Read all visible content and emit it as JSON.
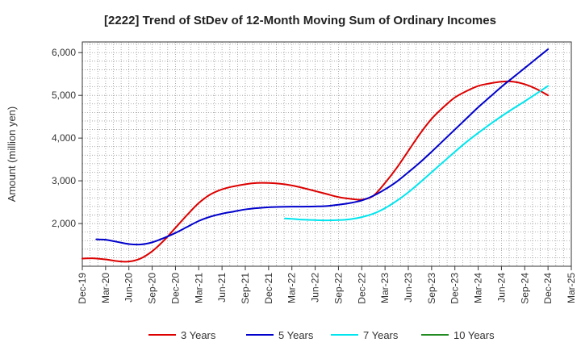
{
  "chart_data": {
    "type": "line",
    "title": "[2222]  Trend of StDev of 12-Month Moving Sum of Ordinary Incomes",
    "xlabel": "",
    "ylabel": "Amount (million yen)",
    "x_ticks": [
      "Dec-19",
      "Mar-20",
      "Jun-20",
      "Sep-20",
      "Dec-20",
      "Mar-21",
      "Jun-21",
      "Sep-21",
      "Dec-21",
      "Mar-22",
      "Jun-22",
      "Sep-22",
      "Dec-22",
      "Mar-23",
      "Jun-23",
      "Sep-23",
      "Dec-23",
      "Mar-24",
      "Jun-24",
      "Sep-24",
      "Dec-24",
      "Mar-25"
    ],
    "x_range": [
      0,
      21
    ],
    "y_ticks": [
      2000,
      3000,
      4000,
      5000,
      6000
    ],
    "y_tick_labels": [
      "2,000",
      "3,000",
      "4,000",
      "5,000",
      "6,000"
    ],
    "ylim": [
      1000,
      6250
    ],
    "grid": true,
    "legend_position": "bottom",
    "series": [
      {
        "name": "3 Years",
        "color": "#dd0000",
        "points": [
          [
            0,
            1180
          ],
          [
            0.5,
            1185
          ],
          [
            1,
            1160
          ],
          [
            1.5,
            1120
          ],
          [
            2,
            1110
          ],
          [
            2.5,
            1180
          ],
          [
            3,
            1350
          ],
          [
            3.5,
            1600
          ],
          [
            4,
            1900
          ],
          [
            4.5,
            2200
          ],
          [
            5,
            2480
          ],
          [
            5.5,
            2680
          ],
          [
            6,
            2800
          ],
          [
            6.5,
            2870
          ],
          [
            7,
            2920
          ],
          [
            7.5,
            2950
          ],
          [
            8,
            2950
          ],
          [
            8.5,
            2930
          ],
          [
            9,
            2890
          ],
          [
            9.5,
            2830
          ],
          [
            10,
            2760
          ],
          [
            10.5,
            2690
          ],
          [
            11,
            2620
          ],
          [
            11.5,
            2580
          ],
          [
            12,
            2560
          ],
          [
            12.5,
            2650
          ],
          [
            13,
            2950
          ],
          [
            13.5,
            3300
          ],
          [
            14,
            3700
          ],
          [
            14.5,
            4100
          ],
          [
            15,
            4450
          ],
          [
            15.5,
            4720
          ],
          [
            16,
            4950
          ],
          [
            16.5,
            5100
          ],
          [
            17,
            5220
          ],
          [
            17.5,
            5280
          ],
          [
            18,
            5320
          ],
          [
            18.5,
            5320
          ],
          [
            19,
            5260
          ],
          [
            19.5,
            5150
          ],
          [
            20,
            5000
          ]
        ]
      },
      {
        "name": "5 Years",
        "color": "#0000cc",
        "points": [
          [
            0.6,
            1630
          ],
          [
            1,
            1620
          ],
          [
            1.5,
            1570
          ],
          [
            2,
            1520
          ],
          [
            2.5,
            1510
          ],
          [
            3,
            1560
          ],
          [
            3.5,
            1660
          ],
          [
            4,
            1780
          ],
          [
            4.5,
            1920
          ],
          [
            5,
            2060
          ],
          [
            5.5,
            2160
          ],
          [
            6,
            2230
          ],
          [
            6.5,
            2280
          ],
          [
            7,
            2330
          ],
          [
            7.5,
            2360
          ],
          [
            8,
            2380
          ],
          [
            8.5,
            2390
          ],
          [
            9,
            2395
          ],
          [
            9.5,
            2395
          ],
          [
            10,
            2400
          ],
          [
            10.5,
            2410
          ],
          [
            11,
            2440
          ],
          [
            11.5,
            2480
          ],
          [
            12,
            2540
          ],
          [
            12.5,
            2650
          ],
          [
            13,
            2800
          ],
          [
            13.5,
            2980
          ],
          [
            14,
            3200
          ],
          [
            14.5,
            3430
          ],
          [
            15,
            3680
          ],
          [
            15.5,
            3940
          ],
          [
            16,
            4200
          ],
          [
            16.5,
            4460
          ],
          [
            17,
            4720
          ],
          [
            17.5,
            4960
          ],
          [
            18,
            5200
          ],
          [
            18.5,
            5420
          ],
          [
            19,
            5640
          ],
          [
            19.5,
            5860
          ],
          [
            20,
            6080
          ]
        ]
      },
      {
        "name": "7 Years",
        "color": "#00e5ee",
        "points": [
          [
            8.7,
            2120
          ],
          [
            9,
            2110
          ],
          [
            9.5,
            2090
          ],
          [
            10,
            2080
          ],
          [
            10.5,
            2075
          ],
          [
            11,
            2080
          ],
          [
            11.5,
            2100
          ],
          [
            12,
            2150
          ],
          [
            12.5,
            2230
          ],
          [
            13,
            2360
          ],
          [
            13.5,
            2530
          ],
          [
            14,
            2730
          ],
          [
            14.5,
            2960
          ],
          [
            15,
            3200
          ],
          [
            15.5,
            3440
          ],
          [
            16,
            3680
          ],
          [
            16.5,
            3910
          ],
          [
            17,
            4120
          ],
          [
            17.5,
            4320
          ],
          [
            18,
            4510
          ],
          [
            18.5,
            4690
          ],
          [
            19,
            4860
          ],
          [
            19.5,
            5040
          ],
          [
            20,
            5220
          ]
        ]
      },
      {
        "name": "10 Years",
        "color": "#228b22",
        "points": []
      }
    ]
  }
}
